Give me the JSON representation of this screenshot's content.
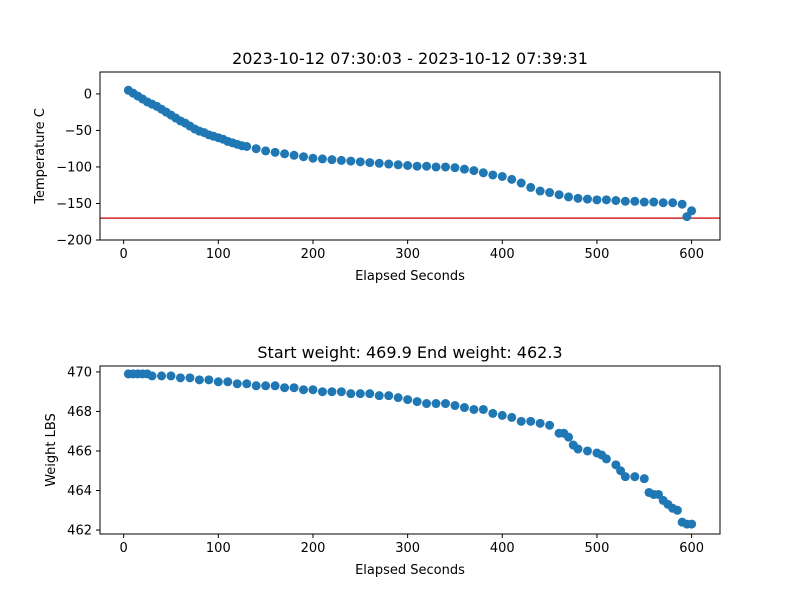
{
  "chart_data": [
    {
      "type": "scatter",
      "title": "2023-10-12 07:30:03 - 2023-10-12 07:39:31",
      "xlabel": "Elapsed Seconds",
      "ylabel": "Temperature C",
      "xlim": [
        -25,
        630
      ],
      "ylim": [
        -200,
        30
      ],
      "xticks": [
        0,
        100,
        200,
        300,
        400,
        500,
        600
      ],
      "yticks": [
        -200,
        -150,
        -100,
        -50,
        0
      ],
      "ytick_labels": [
        "−200",
        "−150",
        "−100",
        "−50",
        "0"
      ],
      "xtick_labels": [
        "0",
        "100",
        "200",
        "300",
        "400",
        "500",
        "600"
      ],
      "point_color": "#1f77b4",
      "reference_line": {
        "y": -170,
        "color": "#d62728"
      },
      "x": [
        5,
        10,
        15,
        20,
        25,
        30,
        35,
        40,
        45,
        50,
        55,
        60,
        65,
        70,
        75,
        80,
        85,
        90,
        95,
        100,
        105,
        110,
        115,
        120,
        125,
        130,
        140,
        150,
        160,
        170,
        180,
        190,
        200,
        210,
        220,
        230,
        240,
        250,
        260,
        270,
        280,
        290,
        300,
        310,
        320,
        330,
        340,
        350,
        360,
        370,
        380,
        390,
        400,
        410,
        420,
        430,
        440,
        450,
        460,
        470,
        480,
        490,
        500,
        510,
        520,
        530,
        540,
        550,
        560,
        570,
        580,
        590,
        595,
        600
      ],
      "y": [
        5,
        1,
        -3,
        -7,
        -11,
        -14,
        -17,
        -21,
        -25,
        -29,
        -33,
        -37,
        -40,
        -44,
        -48,
        -51,
        -53,
        -56,
        -58,
        -60,
        -62,
        -65,
        -67,
        -69,
        -71,
        -72,
        -75,
        -78,
        -80,
        -82,
        -84,
        -86,
        -88,
        -89,
        -90,
        -91,
        -92,
        -93,
        -94,
        -95,
        -96,
        -97,
        -98,
        -99,
        -99,
        -100,
        -100,
        -101,
        -103,
        -105,
        -108,
        -111,
        -113,
        -117,
        -122,
        -128,
        -133,
        -135,
        -138,
        -141,
        -143,
        -144,
        -145,
        -145,
        -146,
        -147,
        -147,
        -148,
        -148,
        -149,
        -149,
        -151,
        -168,
        -160
      ]
    },
    {
      "type": "scatter",
      "title": "Start weight: 469.9 End weight: 462.3",
      "xlabel": "Elapsed Seconds",
      "ylabel": "Weight LBS",
      "xlim": [
        -25,
        630
      ],
      "ylim": [
        461.8,
        470.3
      ],
      "xticks": [
        0,
        100,
        200,
        300,
        400,
        500,
        600
      ],
      "yticks": [
        462,
        464,
        466,
        468,
        470
      ],
      "ytick_labels": [
        "462",
        "464",
        "466",
        "468",
        "470"
      ],
      "xtick_labels": [
        "0",
        "100",
        "200",
        "300",
        "400",
        "500",
        "600"
      ],
      "point_color": "#1f77b4",
      "x": [
        5,
        10,
        15,
        20,
        25,
        30,
        40,
        50,
        60,
        70,
        80,
        90,
        100,
        110,
        120,
        130,
        140,
        150,
        160,
        170,
        180,
        190,
        200,
        210,
        220,
        230,
        240,
        250,
        260,
        270,
        280,
        290,
        300,
        310,
        320,
        330,
        340,
        350,
        360,
        370,
        380,
        390,
        400,
        410,
        420,
        430,
        440,
        450,
        460,
        465,
        470,
        475,
        480,
        490,
        500,
        505,
        510,
        520,
        525,
        530,
        540,
        550,
        555,
        560,
        565,
        570,
        575,
        580,
        585,
        590,
        595,
        600
      ],
      "y": [
        469.9,
        469.9,
        469.9,
        469.9,
        469.9,
        469.8,
        469.8,
        469.8,
        469.7,
        469.7,
        469.6,
        469.6,
        469.5,
        469.5,
        469.4,
        469.4,
        469.3,
        469.3,
        469.3,
        469.2,
        469.2,
        469.1,
        469.1,
        469.0,
        469.0,
        469.0,
        468.9,
        468.9,
        468.9,
        468.8,
        468.8,
        468.7,
        468.6,
        468.5,
        468.4,
        468.4,
        468.4,
        468.3,
        468.2,
        468.1,
        468.1,
        467.9,
        467.8,
        467.7,
        467.5,
        467.5,
        467.4,
        467.3,
        466.9,
        466.9,
        466.7,
        466.3,
        466.1,
        466.0,
        465.9,
        465.8,
        465.6,
        465.3,
        465.0,
        464.7,
        464.7,
        464.6,
        463.9,
        463.8,
        463.8,
        463.5,
        463.3,
        463.1,
        463.0,
        462.4,
        462.3,
        462.3
      ]
    }
  ]
}
